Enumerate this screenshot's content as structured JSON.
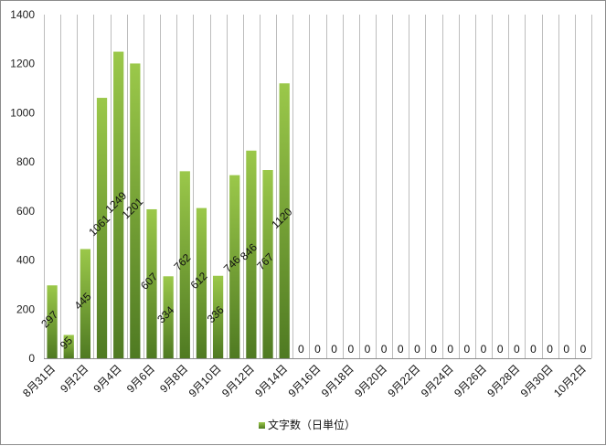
{
  "chart_data": {
    "type": "bar",
    "categories": [
      "8月31日",
      "9月1日",
      "9月2日",
      "9月3日",
      "9月4日",
      "9月5日",
      "9月6日",
      "9月7日",
      "9月8日",
      "9月9日",
      "9月10日",
      "9月11日",
      "9月12日",
      "9月13日",
      "9月14日",
      "9月15日",
      "9月16日",
      "9月17日",
      "9月18日",
      "9月19日",
      "9月20日",
      "9月21日",
      "9月22日",
      "9月23日",
      "9月24日",
      "9月25日",
      "9月26日",
      "9月27日",
      "9月28日",
      "9月29日",
      "9月30日",
      "10月1日",
      "10月2日"
    ],
    "x_tick_labels": [
      "8月31日",
      "9月2日",
      "9月4日",
      "9月6日",
      "9月8日",
      "9月10日",
      "9月12日",
      "9月14日",
      "9月16日",
      "9月18日",
      "9月20日",
      "9月22日",
      "9月24日",
      "9月26日",
      "9月28日",
      "9月30日",
      "10月2日"
    ],
    "series": [
      {
        "name": "文字数（日単位）",
        "values": [
          297,
          95,
          445,
          1061,
          1249,
          1201,
          607,
          334,
          762,
          612,
          336,
          746,
          846,
          767,
          1120,
          0,
          0,
          0,
          0,
          0,
          0,
          0,
          0,
          0,
          0,
          0,
          0,
          0,
          0,
          0,
          0,
          0,
          0
        ]
      }
    ],
    "ylim": [
      0,
      1400
    ],
    "yticks": [
      0,
      200,
      400,
      600,
      800,
      1000,
      1200,
      1400
    ],
    "grid": "vertical",
    "legend": "bottom",
    "bar_color_top": "#9bc84a",
    "bar_color_bottom": "#4f7a22"
  }
}
